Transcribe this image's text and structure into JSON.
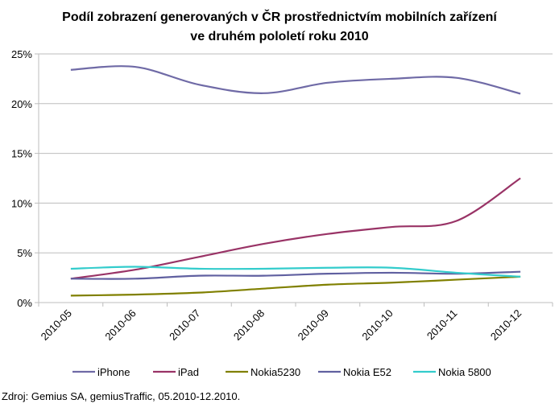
{
  "chart_data": {
    "type": "line",
    "title_lines": [
      "Podíl zobrazení generovaných v ČR prostřednictvím mobilních zařízení",
      "ve druhém pololetí roku 2010"
    ],
    "categories": [
      "2010-05",
      "2010-06",
      "2010-07",
      "2010-08",
      "2010-09",
      "2010-10",
      "2010-11",
      "2010-12"
    ],
    "ylim": [
      0,
      25
    ],
    "yticks": [
      0,
      5,
      10,
      15,
      20,
      25
    ],
    "ytick_labels": [
      "0%",
      "5%",
      "10%",
      "15%",
      "20%",
      "25%"
    ],
    "grid": true,
    "legend_position": "bottom",
    "series": [
      {
        "name": "iPhone",
        "color": "#6f6aa6",
        "values": [
          23.4,
          23.7,
          21.9,
          21.05,
          22.1,
          22.5,
          22.6,
          21.0
        ]
      },
      {
        "name": "iPad",
        "color": "#993366",
        "values": [
          2.4,
          3.3,
          4.6,
          5.9,
          6.9,
          7.6,
          8.2,
          12.5
        ]
      },
      {
        "name": "Nokia5230",
        "color": "#808000",
        "values": [
          0.7,
          0.8,
          1.0,
          1.4,
          1.8,
          2.0,
          2.3,
          2.6
        ]
      },
      {
        "name": "Nokia E52",
        "color": "#6060a0",
        "values": [
          2.4,
          2.4,
          2.7,
          2.7,
          2.9,
          3.0,
          2.9,
          3.1
        ]
      },
      {
        "name": "Nokia 5800",
        "color": "#33cccc",
        "values": [
          3.4,
          3.6,
          3.4,
          3.4,
          3.5,
          3.5,
          3.0,
          2.6
        ]
      }
    ]
  },
  "source": "Zdroj: Gemius SA, gemiusTraffic, 05.2010-12.2010."
}
